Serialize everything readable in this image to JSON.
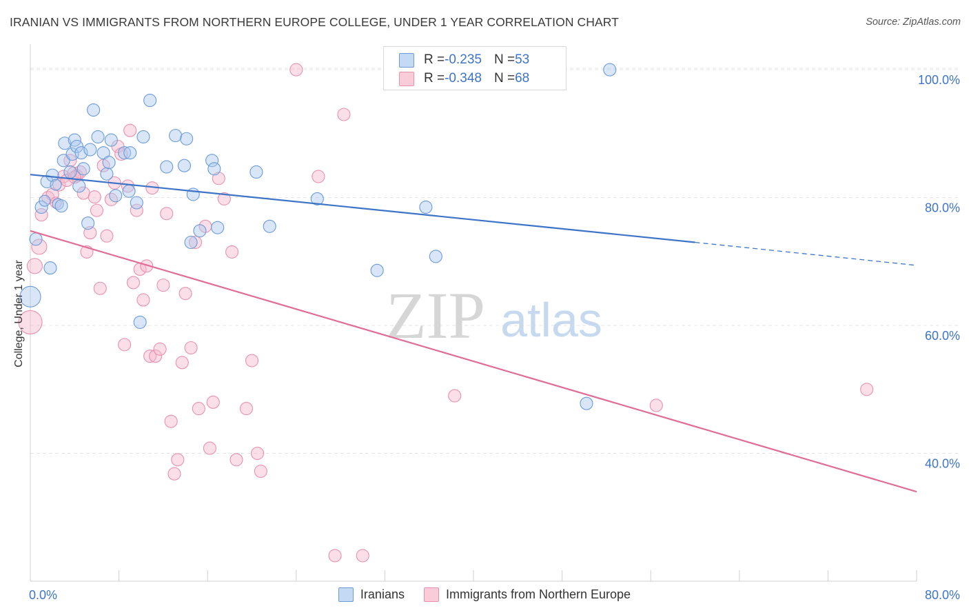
{
  "title": "IRANIAN VS IMMIGRANTS FROM NORTHERN EUROPE COLLEGE, UNDER 1 YEAR CORRELATION CHART",
  "source": "Source: ZipAtlas.com",
  "watermark": {
    "zip": "ZIP",
    "atlas": "atlas"
  },
  "legend": {
    "rows": [
      {
        "r_label": "R = ",
        "r_value": "-0.235",
        "n_label": "N = ",
        "n_value": "53"
      },
      {
        "r_label": "R = ",
        "r_value": "-0.348",
        "n_label": "N = ",
        "n_value": "68"
      }
    ]
  },
  "colors": {
    "blue_fill": "#a9c8f0",
    "blue_stroke": "#6b9ad8",
    "blue_line": "#3d74c8",
    "pink_fill": "#f6b8cb",
    "pink_stroke": "#e890ad",
    "pink_line": "#e06c98",
    "axis_text": "#3d74c8"
  },
  "chart_data": {
    "type": "scatter",
    "ylabel": "College, Under 1 year",
    "xlim": [
      0,
      80
    ],
    "ylim": [
      20,
      104
    ],
    "x_tick_labels": [
      "0.0%",
      "80.0%"
    ],
    "y_ticks": [
      40,
      60,
      80,
      100
    ],
    "y_tick_labels": [
      "40.0%",
      "60.0%",
      "80.0%",
      "100.0%"
    ],
    "grid": true,
    "series": [
      {
        "name": "Iranians",
        "color": "#a9c8f0",
        "trend": {
          "x": [
            0,
            60
          ],
          "y": [
            83.6,
            73.0
          ],
          "dashed_to": [
            80,
            69.4
          ]
        },
        "points": [
          [
            0.5,
            73.5,
            9
          ],
          [
            0.0,
            64.5,
            15
          ],
          [
            1.0,
            78.5,
            9
          ],
          [
            1.3,
            79.5,
            8
          ],
          [
            1.5,
            82.5,
            9
          ],
          [
            1.8,
            69.0,
            9
          ],
          [
            2.0,
            83.5,
            9
          ],
          [
            2.3,
            82.0,
            8
          ],
          [
            2.5,
            79.0,
            8
          ],
          [
            2.8,
            78.7,
            9
          ],
          [
            3.0,
            85.8,
            9
          ],
          [
            3.1,
            88.5,
            9
          ],
          [
            3.6,
            84.0,
            9
          ],
          [
            3.8,
            86.8,
            9
          ],
          [
            4.0,
            89.0,
            9
          ],
          [
            4.2,
            88.0,
            9
          ],
          [
            4.4,
            81.8,
            9
          ],
          [
            4.8,
            84.5,
            9
          ],
          [
            4.6,
            87.0,
            9
          ],
          [
            5.2,
            76.0,
            9
          ],
          [
            5.4,
            87.5,
            9
          ],
          [
            5.7,
            93.7,
            9
          ],
          [
            6.1,
            89.5,
            9
          ],
          [
            6.6,
            87.0,
            9
          ],
          [
            6.9,
            83.7,
            9
          ],
          [
            7.1,
            85.5,
            9
          ],
          [
            7.3,
            89.0,
            9
          ],
          [
            7.7,
            80.3,
            9
          ],
          [
            8.5,
            87.0,
            9
          ],
          [
            8.9,
            81.0,
            9
          ],
          [
            9.0,
            87.0,
            9
          ],
          [
            9.6,
            79.2,
            9
          ],
          [
            9.9,
            60.5,
            9
          ],
          [
            10.2,
            89.5,
            9
          ],
          [
            10.8,
            95.2,
            9
          ],
          [
            12.3,
            84.8,
            9
          ],
          [
            13.1,
            89.7,
            9
          ],
          [
            13.9,
            85.0,
            9
          ],
          [
            14.1,
            89.2,
            9
          ],
          [
            14.5,
            73.0,
            9
          ],
          [
            14.7,
            80.5,
            9
          ],
          [
            15.3,
            74.8,
            9
          ],
          [
            16.4,
            85.8,
            9
          ],
          [
            16.6,
            84.5,
            9
          ],
          [
            16.9,
            75.3,
            9
          ],
          [
            20.4,
            84.0,
            9
          ],
          [
            21.6,
            75.5,
            9
          ],
          [
            25.9,
            79.8,
            9
          ],
          [
            31.3,
            68.6,
            9
          ],
          [
            35.7,
            78.5,
            9
          ],
          [
            36.6,
            70.8,
            9
          ],
          [
            50.2,
            47.8,
            9
          ],
          [
            52.3,
            100.0,
            9
          ]
        ]
      },
      {
        "name": "Immigrants from Northern Europe",
        "color": "#f6b8cb",
        "trend": {
          "x": [
            0,
            80
          ],
          "y": [
            74.8,
            34.0
          ]
        },
        "points": [
          [
            0.0,
            60.5,
            17
          ],
          [
            0.4,
            69.3,
            11
          ],
          [
            0.8,
            72.3,
            11
          ],
          [
            1.0,
            77.3,
            9
          ],
          [
            1.6,
            80.0,
            9
          ],
          [
            2.0,
            80.5,
            9
          ],
          [
            2.3,
            79.2,
            8
          ],
          [
            2.6,
            82.0,
            9
          ],
          [
            3.0,
            83.3,
            9
          ],
          [
            3.3,
            82.7,
            9
          ],
          [
            3.6,
            85.8,
            9
          ],
          [
            3.9,
            83.8,
            9
          ],
          [
            4.2,
            83.4,
            9
          ],
          [
            4.5,
            84.0,
            9
          ],
          [
            4.8,
            80.7,
            9
          ],
          [
            5.1,
            71.5,
            9
          ],
          [
            5.4,
            74.5,
            9
          ],
          [
            5.8,
            80.1,
            9
          ],
          [
            6.0,
            78.0,
            9
          ],
          [
            6.3,
            65.8,
            9
          ],
          [
            6.6,
            85.0,
            9
          ],
          [
            6.9,
            74.0,
            9
          ],
          [
            7.3,
            79.7,
            9
          ],
          [
            7.6,
            82.3,
            9
          ],
          [
            7.9,
            88.0,
            9
          ],
          [
            8.2,
            86.8,
            9
          ],
          [
            8.5,
            57.0,
            9
          ],
          [
            8.8,
            81.8,
            9
          ],
          [
            9.0,
            90.5,
            9
          ],
          [
            9.3,
            66.7,
            9
          ],
          [
            9.6,
            78.0,
            9
          ],
          [
            9.9,
            68.8,
            9
          ],
          [
            10.2,
            64.0,
            9
          ],
          [
            10.5,
            69.3,
            9
          ],
          [
            10.8,
            55.2,
            9
          ],
          [
            11.0,
            81.5,
            9
          ],
          [
            11.3,
            55.2,
            9
          ],
          [
            11.7,
            56.3,
            9
          ],
          [
            12.0,
            66.3,
            9
          ],
          [
            12.3,
            77.5,
            9
          ],
          [
            12.7,
            45.0,
            9
          ],
          [
            13.0,
            36.8,
            9
          ],
          [
            13.3,
            39.0,
            9
          ],
          [
            13.7,
            54.2,
            9
          ],
          [
            14.0,
            65.0,
            9
          ],
          [
            14.5,
            56.5,
            9
          ],
          [
            14.9,
            73.0,
            9
          ],
          [
            15.2,
            47.0,
            9
          ],
          [
            15.8,
            75.5,
            9
          ],
          [
            16.2,
            40.8,
            9
          ],
          [
            16.5,
            48.0,
            9
          ],
          [
            17.0,
            83.0,
            9
          ],
          [
            17.5,
            79.8,
            9
          ],
          [
            18.2,
            71.5,
            9
          ],
          [
            18.6,
            39.0,
            9
          ],
          [
            19.5,
            47.0,
            9
          ],
          [
            20.0,
            54.5,
            9
          ],
          [
            20.5,
            40.0,
            9
          ],
          [
            20.8,
            37.2,
            9
          ],
          [
            24.0,
            100.0,
            9
          ],
          [
            26.0,
            83.3,
            9
          ],
          [
            27.5,
            24.0,
            9
          ],
          [
            28.3,
            93.0,
            9
          ],
          [
            30.0,
            24.0,
            9
          ],
          [
            38.3,
            49.0,
            9
          ],
          [
            56.5,
            47.5,
            9
          ],
          [
            75.5,
            50.0,
            9
          ],
          [
            4.0,
            83.2,
            9
          ]
        ]
      }
    ]
  }
}
